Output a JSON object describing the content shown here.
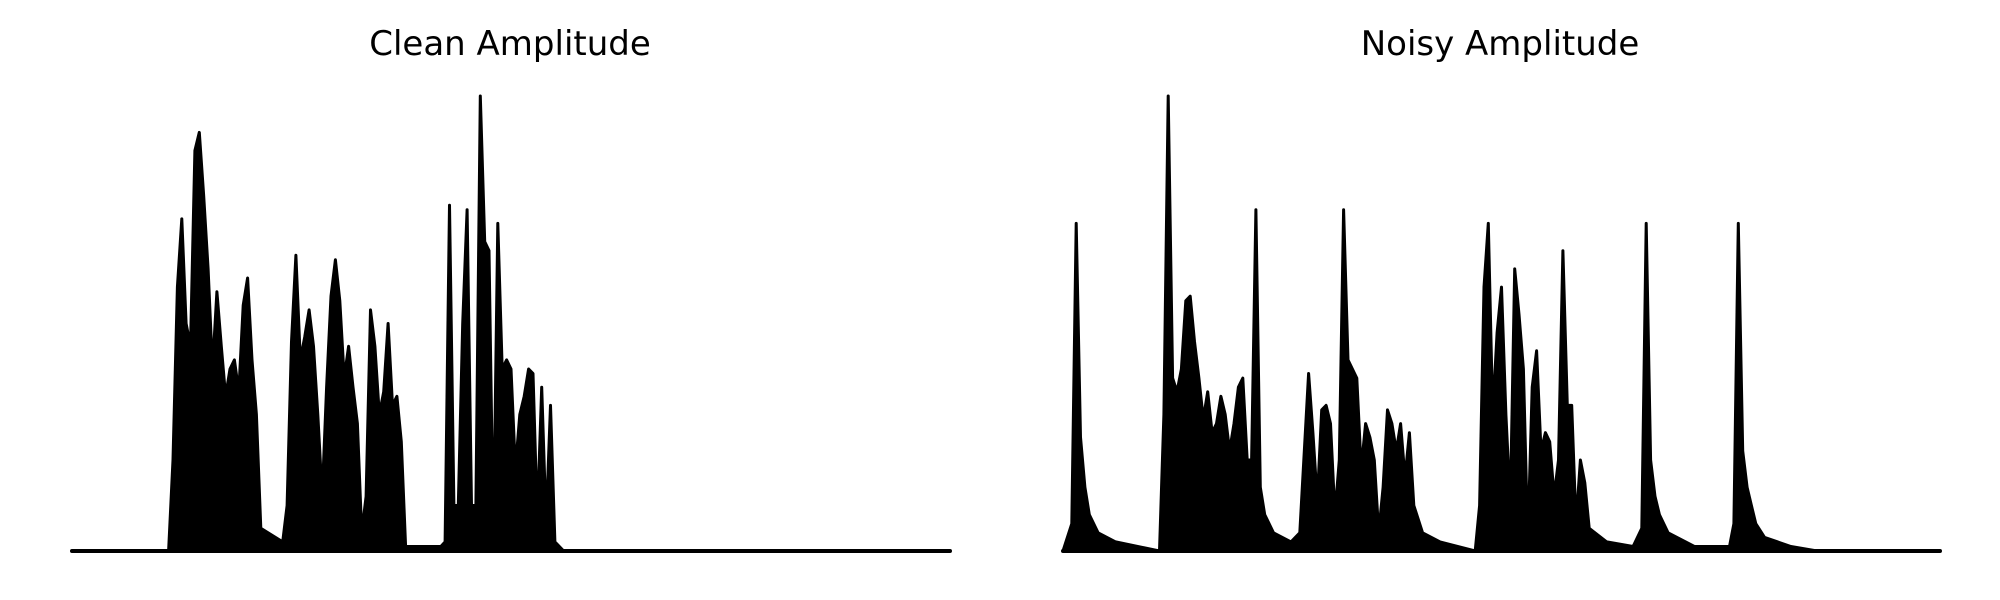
{
  "chart_data": [
    {
      "type": "area",
      "title": "Clean Amplitude",
      "xlabel": "",
      "ylabel": "",
      "axes_visible": false,
      "grid": false,
      "color": "#000000",
      "ylim": [
        0,
        1
      ],
      "points": [
        [
          0,
          0
        ],
        [
          0.11,
          0
        ],
        [
          0.115,
          0.2
        ],
        [
          0.12,
          0.58
        ],
        [
          0.125,
          0.73
        ],
        [
          0.13,
          0.5
        ],
        [
          0.135,
          0.45
        ],
        [
          0.14,
          0.88
        ],
        [
          0.145,
          0.92
        ],
        [
          0.15,
          0.78
        ],
        [
          0.155,
          0.62
        ],
        [
          0.16,
          0.4
        ],
        [
          0.165,
          0.57
        ],
        [
          0.17,
          0.45
        ],
        [
          0.175,
          0.34
        ],
        [
          0.18,
          0.4
        ],
        [
          0.185,
          0.42
        ],
        [
          0.19,
          0.35
        ],
        [
          0.195,
          0.54
        ],
        [
          0.2,
          0.6
        ],
        [
          0.205,
          0.42
        ],
        [
          0.21,
          0.3
        ],
        [
          0.215,
          0.05
        ],
        [
          0.24,
          0.02
        ],
        [
          0.245,
          0.1
        ],
        [
          0.25,
          0.46
        ],
        [
          0.255,
          0.65
        ],
        [
          0.26,
          0.42
        ],
        [
          0.265,
          0.47
        ],
        [
          0.27,
          0.53
        ],
        [
          0.275,
          0.45
        ],
        [
          0.28,
          0.3
        ],
        [
          0.285,
          0.12
        ],
        [
          0.29,
          0.36
        ],
        [
          0.295,
          0.56
        ],
        [
          0.3,
          0.64
        ],
        [
          0.305,
          0.55
        ],
        [
          0.31,
          0.38
        ],
        [
          0.315,
          0.45
        ],
        [
          0.32,
          0.36
        ],
        [
          0.325,
          0.28
        ],
        [
          0.33,
          0.04
        ],
        [
          0.335,
          0.12
        ],
        [
          0.34,
          0.53
        ],
        [
          0.345,
          0.45
        ],
        [
          0.35,
          0.3
        ],
        [
          0.355,
          0.35
        ],
        [
          0.36,
          0.5
        ],
        [
          0.365,
          0.32
        ],
        [
          0.37,
          0.34
        ],
        [
          0.375,
          0.24
        ],
        [
          0.38,
          0.01
        ],
        [
          0.42,
          0.01
        ],
        [
          0.425,
          0.02
        ],
        [
          0.43,
          0.76
        ],
        [
          0.435,
          0.1
        ],
        [
          0.44,
          0.1
        ],
        [
          0.445,
          0.5
        ],
        [
          0.45,
          0.75
        ],
        [
          0.455,
          0.1
        ],
        [
          0.46,
          0.1
        ],
        [
          0.465,
          1.0
        ],
        [
          0.47,
          0.68
        ],
        [
          0.475,
          0.66
        ],
        [
          0.48,
          0.02
        ],
        [
          0.485,
          0.72
        ],
        [
          0.49,
          0.4
        ],
        [
          0.495,
          0.42
        ],
        [
          0.5,
          0.4
        ],
        [
          0.505,
          0.18
        ],
        [
          0.51,
          0.3
        ],
        [
          0.515,
          0.34
        ],
        [
          0.52,
          0.4
        ],
        [
          0.525,
          0.39
        ],
        [
          0.53,
          0.07
        ],
        [
          0.535,
          0.36
        ],
        [
          0.54,
          0.06
        ],
        [
          0.545,
          0.32
        ],
        [
          0.55,
          0.02
        ],
        [
          0.56,
          0.0
        ],
        [
          1.0,
          0
        ]
      ]
    },
    {
      "type": "area",
      "title": "Noisy Amplitude",
      "xlabel": "",
      "ylabel": "",
      "axes_visible": false,
      "grid": false,
      "color": "#000000",
      "ylim": [
        0,
        1
      ],
      "points": [
        [
          0,
          0
        ],
        [
          0.01,
          0.06
        ],
        [
          0.015,
          0.72
        ],
        [
          0.02,
          0.25
        ],
        [
          0.025,
          0.14
        ],
        [
          0.03,
          0.08
        ],
        [
          0.04,
          0.04
        ],
        [
          0.06,
          0.02
        ],
        [
          0.11,
          0.0
        ],
        [
          0.115,
          0.3
        ],
        [
          0.12,
          1.0
        ],
        [
          0.125,
          0.38
        ],
        [
          0.13,
          0.35
        ],
        [
          0.135,
          0.4
        ],
        [
          0.14,
          0.55
        ],
        [
          0.145,
          0.56
        ],
        [
          0.15,
          0.46
        ],
        [
          0.155,
          0.38
        ],
        [
          0.16,
          0.29
        ],
        [
          0.165,
          0.35
        ],
        [
          0.17,
          0.26
        ],
        [
          0.175,
          0.28
        ],
        [
          0.18,
          0.34
        ],
        [
          0.185,
          0.3
        ],
        [
          0.19,
          0.22
        ],
        [
          0.195,
          0.28
        ],
        [
          0.2,
          0.36
        ],
        [
          0.205,
          0.38
        ],
        [
          0.21,
          0.2
        ],
        [
          0.215,
          0.2
        ],
        [
          0.22,
          0.75
        ],
        [
          0.225,
          0.14
        ],
        [
          0.23,
          0.08
        ],
        [
          0.24,
          0.04
        ],
        [
          0.26,
          0.02
        ],
        [
          0.27,
          0.04
        ],
        [
          0.28,
          0.39
        ],
        [
          0.285,
          0.26
        ],
        [
          0.29,
          0.11
        ],
        [
          0.295,
          0.31
        ],
        [
          0.3,
          0.32
        ],
        [
          0.305,
          0.28
        ],
        [
          0.31,
          0.08
        ],
        [
          0.315,
          0.2
        ],
        [
          0.32,
          0.75
        ],
        [
          0.325,
          0.42
        ],
        [
          0.33,
          0.4
        ],
        [
          0.335,
          0.38
        ],
        [
          0.34,
          0.18
        ],
        [
          0.345,
          0.28
        ],
        [
          0.35,
          0.25
        ],
        [
          0.355,
          0.2
        ],
        [
          0.36,
          0.04
        ],
        [
          0.365,
          0.14
        ],
        [
          0.37,
          0.31
        ],
        [
          0.375,
          0.28
        ],
        [
          0.38,
          0.22
        ],
        [
          0.385,
          0.28
        ],
        [
          0.39,
          0.16
        ],
        [
          0.395,
          0.26
        ],
        [
          0.4,
          0.1
        ],
        [
          0.41,
          0.04
        ],
        [
          0.43,
          0.02
        ],
        [
          0.47,
          0.0
        ],
        [
          0.475,
          0.1
        ],
        [
          0.48,
          0.58
        ],
        [
          0.485,
          0.72
        ],
        [
          0.49,
          0.3
        ],
        [
          0.495,
          0.48
        ],
        [
          0.5,
          0.58
        ],
        [
          0.505,
          0.3
        ],
        [
          0.51,
          0.1
        ],
        [
          0.515,
          0.62
        ],
        [
          0.52,
          0.52
        ],
        [
          0.525,
          0.4
        ],
        [
          0.53,
          0.02
        ],
        [
          0.535,
          0.36
        ],
        [
          0.54,
          0.44
        ],
        [
          0.545,
          0.22
        ],
        [
          0.55,
          0.26
        ],
        [
          0.555,
          0.24
        ],
        [
          0.56,
          0.12
        ],
        [
          0.565,
          0.2
        ],
        [
          0.57,
          0.66
        ],
        [
          0.575,
          0.32
        ],
        [
          0.58,
          0.32
        ],
        [
          0.585,
          0.06
        ],
        [
          0.59,
          0.2
        ],
        [
          0.595,
          0.15
        ],
        [
          0.6,
          0.05
        ],
        [
          0.62,
          0.02
        ],
        [
          0.65,
          0.01
        ],
        [
          0.66,
          0.05
        ],
        [
          0.665,
          0.72
        ],
        [
          0.67,
          0.2
        ],
        [
          0.675,
          0.12
        ],
        [
          0.68,
          0.08
        ],
        [
          0.69,
          0.04
        ],
        [
          0.72,
          0.01
        ],
        [
          0.76,
          0.01
        ],
        [
          0.765,
          0.06
        ],
        [
          0.77,
          0.72
        ],
        [
          0.775,
          0.22
        ],
        [
          0.78,
          0.14
        ],
        [
          0.785,
          0.1
        ],
        [
          0.79,
          0.06
        ],
        [
          0.8,
          0.03
        ],
        [
          0.83,
          0.01
        ],
        [
          0.86,
          0.0
        ],
        [
          1.0,
          0
        ]
      ]
    }
  ]
}
